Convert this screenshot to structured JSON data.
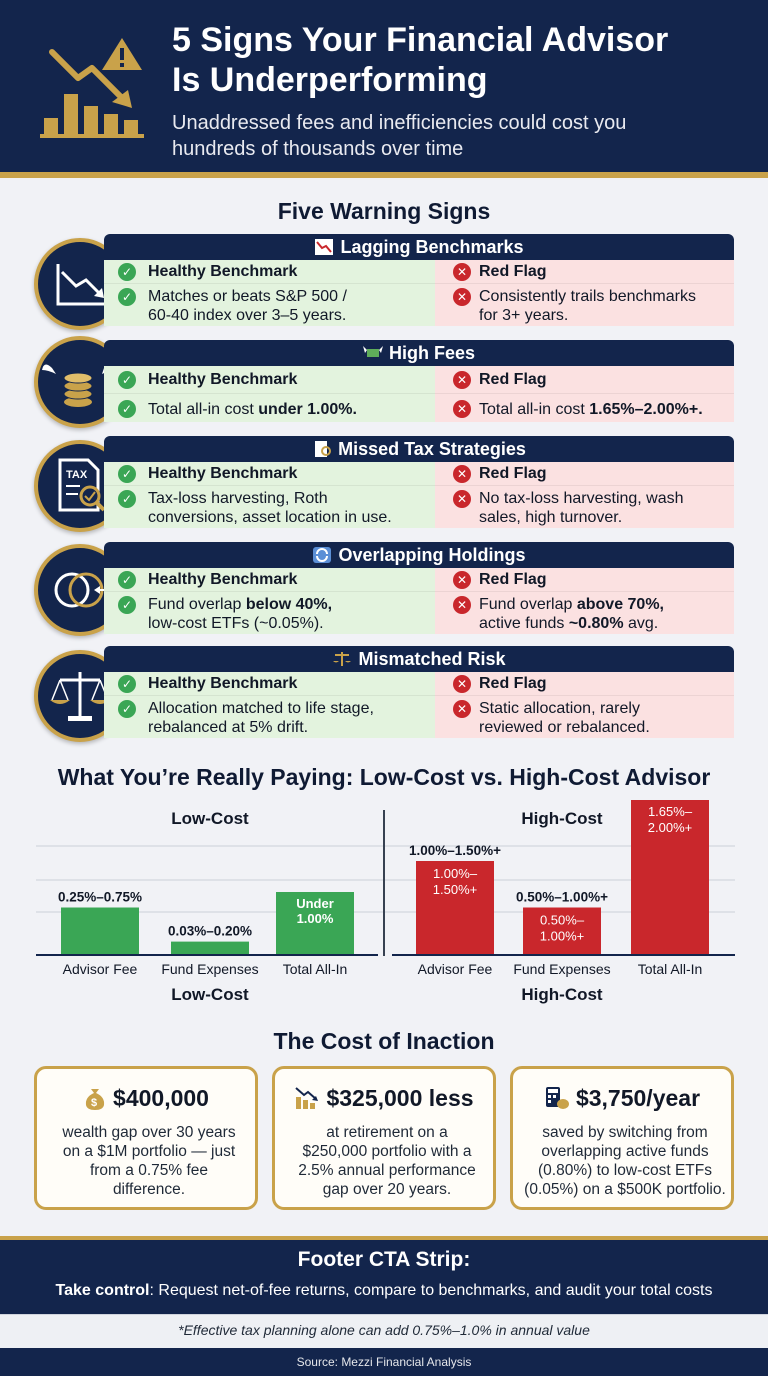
{
  "header": {
    "title_line1": "5 Signs Your Financial Advisor",
    "title_line2": "Is Underperforming",
    "subtitle_line1": "Unaddressed fees and inefficiencies could cost you",
    "subtitle_hl": "hundreds",
    "subtitle_line2_rest": " of thousands over time",
    "logo_icon": "declining-chart-warning-icon"
  },
  "signs_title": "Five Warning Signs",
  "signs": [
    {
      "title": "Lagging Benchmarks",
      "icon": "declining-chart-icon",
      "good_head": "Healthy Benchmark",
      "good_lines": [
        "Matches or beats S&P 500 /",
        "60-40 index over 3–5 years."
      ],
      "bad_head": "Red Flag",
      "bad_lines": [
        "Consistently trails benchmarks",
        "for 3+ years."
      ]
    },
    {
      "title": "High Fees",
      "icon": "flying-coins-icon",
      "good_head": "Healthy Benchmark",
      "good_pre": "Total all-in cost ",
      "good_bold": "under 1.00%.",
      "bad_head": "Red Flag",
      "bad_pre": "Total all-in cost ",
      "bad_bold": "1.65%–2.00%+."
    },
    {
      "title": "Missed Tax Strategies",
      "icon": "tax-document-icon",
      "good_head": "Healthy Benchmark",
      "good_lines": [
        "Tax-loss harvesting, Roth",
        "conversions, asset location in use."
      ],
      "bad_head": "Red Flag",
      "bad_lines": [
        "No tax-loss harvesting, wash",
        "sales, high turnover."
      ]
    },
    {
      "title": "Overlapping Holdings",
      "icon": "overlapping-circles-icon",
      "good_head": "Healthy Benchmark",
      "good_pre": "Fund overlap ",
      "good_bold": "below 40%,",
      "good_line2": "low-cost ETFs (~0.05%).",
      "bad_head": "Red Flag",
      "bad_pre": "Fund overlap ",
      "bad_bold": "above 70%,",
      "bad_line2_pre": "active funds ",
      "bad_line2_bold": "~0.80%",
      "bad_line2_post": " avg."
    },
    {
      "title": "Mismatched Risk",
      "icon": "balance-scale-icon",
      "good_head": "Healthy Benchmark",
      "good_lines": [
        "Allocation matched to life stage,",
        "rebalanced at 5% drift."
      ],
      "bad_head": "Red Flag",
      "bad_lines": [
        "Static allocation, rarely",
        "reviewed or rebalanced."
      ]
    }
  ],
  "chart_title": "What You’re Really Paying: Low-Cost vs. High-Cost Advisor",
  "chart_data": [
    {
      "type": "bar",
      "title": "Low-Cost",
      "bottom_label": "Low-Cost",
      "categories": [
        "Advisor Fee",
        "Fund Expenses",
        "Total All-In"
      ],
      "values": [
        0.75,
        0.2,
        1.0
      ],
      "value_labels": [
        "0.25%–0.75%",
        "0.03%–0.20%",
        "Under 1.00%"
      ],
      "color": "#3aa655"
    },
    {
      "type": "bar",
      "title": "High-Cost",
      "bottom_label": "High-Cost",
      "categories": [
        "Advisor Fee",
        "Fund Expenses",
        "Total All-In"
      ],
      "values": [
        1.5,
        0.75,
        2.5
      ],
      "value_labels": [
        "1.00%–1.50%+",
        "0.50%–1.00%+",
        ""
      ],
      "inner_labels": [
        "1.00%–1.50%+",
        "0.50%–1.00%+",
        "1.65%–2.00%+"
      ],
      "color": "#c9272c"
    }
  ],
  "inaction_title": "The Cost of Inaction",
  "inaction": [
    {
      "icon": "money-bag-icon",
      "value": "$400,000",
      "lines": [
        "wealth gap over 30 years",
        "on a $1M portfolio — just",
        "from a 0.75% fee",
        "difference."
      ]
    },
    {
      "icon": "declining-bars-icon",
      "value": "$325,000 less",
      "lines": [
        "at retirement on a",
        "$250,000 portfolio with a",
        "2.5% annual performance",
        "gap over 20 years."
      ]
    },
    {
      "icon": "calculator-piggy-icon",
      "value": "$3,750/year",
      "lines": [
        "saved by switching from",
        "overlapping active funds",
        "(0.80%) to low-cost ETFs",
        "(0.05%) on a $500K portfolio."
      ]
    }
  ],
  "footer": {
    "title": "Footer CTA Strip:",
    "bold": "Take control",
    "text": ": Request net-of-fee returns, compare to benchmarks, and audit your total costs",
    "note": "*Effective tax planning alone can add 0.75%–1.0% in annual value",
    "source": "Source: Mezzi Financial Analysis"
  },
  "colors": {
    "navy": "#13254c",
    "gold": "#c9a24a",
    "green": "#3aa655",
    "red": "#c9272c",
    "good_bg": "#e3f3de",
    "bad_bg": "#fbe1e1"
  }
}
